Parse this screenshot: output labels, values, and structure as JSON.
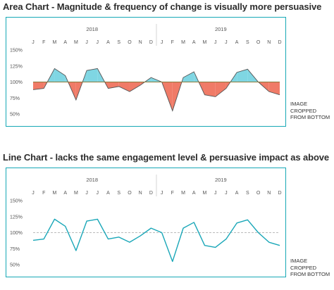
{
  "charts": [
    {
      "heading": "Area Chart - Magnitude & frequency of change is visually more persuasive",
      "note": [
        "IMAGE",
        "CROPPED",
        "FROM BOTTOM"
      ]
    },
    {
      "heading": "Line Chart - lacks the same engagement level & persuasive impact as above",
      "note": [
        "IMAGE",
        "CROPPED",
        "FROM BOTTOM"
      ]
    }
  ],
  "chart_data": [
    {
      "type": "area",
      "title": "Area Chart - Magnitude & frequency of change is visually more persuasive",
      "years": [
        "2018",
        "2019"
      ],
      "categories": [
        "J",
        "F",
        "M",
        "A",
        "M",
        "J",
        "J",
        "A",
        "S",
        "O",
        "N",
        "D",
        "J",
        "F",
        "M",
        "A",
        "M",
        "J",
        "J",
        "A",
        "S",
        "O",
        "N",
        "D"
      ],
      "values": [
        88,
        90,
        121,
        110,
        72,
        118,
        121,
        90,
        93,
        85,
        95,
        107,
        100,
        55,
        107,
        116,
        80,
        77,
        90,
        115,
        120,
        100,
        85,
        80
      ],
      "baseline": 100,
      "yticks": [
        "150%",
        "125%",
        "100%",
        "75%",
        "50%"
      ],
      "ylim": [
        50,
        150
      ],
      "colors": {
        "above": "#7fd6e3",
        "below": "#f07b67",
        "line": "#555555"
      }
    },
    {
      "type": "line",
      "title": "Line Chart - lacks the same engagement level & persuasive impact as above",
      "years": [
        "2018",
        "2019"
      ],
      "categories": [
        "J",
        "F",
        "M",
        "A",
        "M",
        "J",
        "J",
        "A",
        "S",
        "O",
        "N",
        "D",
        "J",
        "F",
        "M",
        "A",
        "M",
        "J",
        "J",
        "A",
        "S",
        "O",
        "N",
        "D"
      ],
      "values": [
        88,
        90,
        121,
        110,
        72,
        118,
        121,
        90,
        93,
        85,
        95,
        107,
        100,
        55,
        107,
        116,
        80,
        77,
        90,
        115,
        120,
        100,
        85,
        80
      ],
      "baseline": 100,
      "yticks": [
        "150%",
        "125%",
        "100%",
        "75%",
        "50%"
      ],
      "ylim": [
        50,
        150
      ],
      "colors": {
        "line": "#1aa7b8",
        "baseline": "#bbbbbb"
      }
    }
  ]
}
